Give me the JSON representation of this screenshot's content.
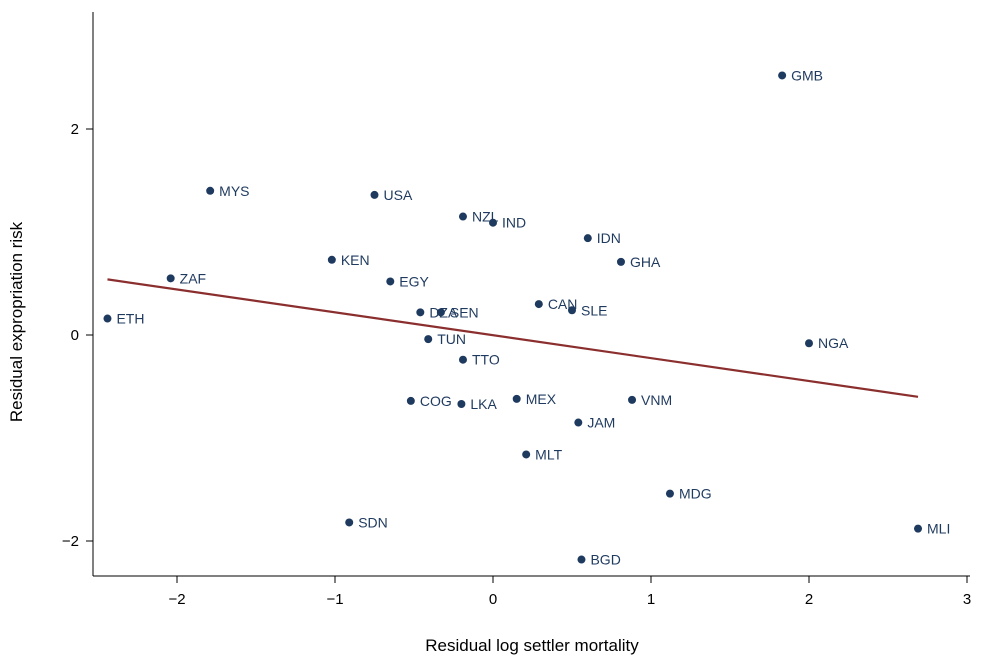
{
  "chart_data": {
    "type": "scatter",
    "title": "",
    "xlabel": "Residual log settler mortality",
    "ylabel": "Residual expropriation risk",
    "xlim": [
      -2.5,
      3.0
    ],
    "ylim": [
      -2.3,
      3.2
    ],
    "xticks": [
      -2,
      -1,
      0,
      1,
      2,
      3
    ],
    "yticks": [
      -2,
      0,
      2
    ],
    "grid": false,
    "legend": "none",
    "point_color": "#1f3a5f",
    "line_color": "#8b2e2e",
    "points": [
      {
        "label": "GMB",
        "x": 1.83,
        "y": 2.52
      },
      {
        "label": "MYS",
        "x": -1.79,
        "y": 1.4
      },
      {
        "label": "USA",
        "x": -0.75,
        "y": 1.36
      },
      {
        "label": "NZL",
        "x": -0.19,
        "y": 1.15
      },
      {
        "label": "IND",
        "x": 0.0,
        "y": 1.09
      },
      {
        "label": "IDN",
        "x": 0.6,
        "y": 0.94
      },
      {
        "label": "KEN",
        "x": -1.02,
        "y": 0.73
      },
      {
        "label": "GHA",
        "x": 0.81,
        "y": 0.71
      },
      {
        "label": "ZAF",
        "x": -2.04,
        "y": 0.55
      },
      {
        "label": "EGY",
        "x": -0.65,
        "y": 0.52
      },
      {
        "label": "CAN",
        "x": 0.29,
        "y": 0.3
      },
      {
        "label": "SLE",
        "x": 0.5,
        "y": 0.24
      },
      {
        "label": "DZA",
        "x": -0.46,
        "y": 0.22
      },
      {
        "label": "SEN",
        "x": -0.33,
        "y": 0.22
      },
      {
        "label": "ETH",
        "x": -2.44,
        "y": 0.16
      },
      {
        "label": "TUN",
        "x": -0.41,
        "y": -0.04
      },
      {
        "label": "NGA",
        "x": 2.0,
        "y": -0.08
      },
      {
        "label": "TTO",
        "x": -0.19,
        "y": -0.24
      },
      {
        "label": "MEX",
        "x": 0.15,
        "y": -0.62
      },
      {
        "label": "VNM",
        "x": 0.88,
        "y": -0.63
      },
      {
        "label": "COG",
        "x": -0.52,
        "y": -0.64
      },
      {
        "label": "LKA",
        "x": -0.2,
        "y": -0.67
      },
      {
        "label": "JAM",
        "x": 0.54,
        "y": -0.85
      },
      {
        "label": "MLT",
        "x": 0.21,
        "y": -1.16
      },
      {
        "label": "MDG",
        "x": 1.12,
        "y": -1.54
      },
      {
        "label": "SDN",
        "x": -0.91,
        "y": -1.82
      },
      {
        "label": "MLI",
        "x": 2.69,
        "y": -1.88
      },
      {
        "label": "BGD",
        "x": 0.56,
        "y": -2.18
      }
    ],
    "fit_line": {
      "x": [
        -2.44,
        2.69
      ],
      "y": [
        0.54,
        -0.6
      ]
    }
  }
}
